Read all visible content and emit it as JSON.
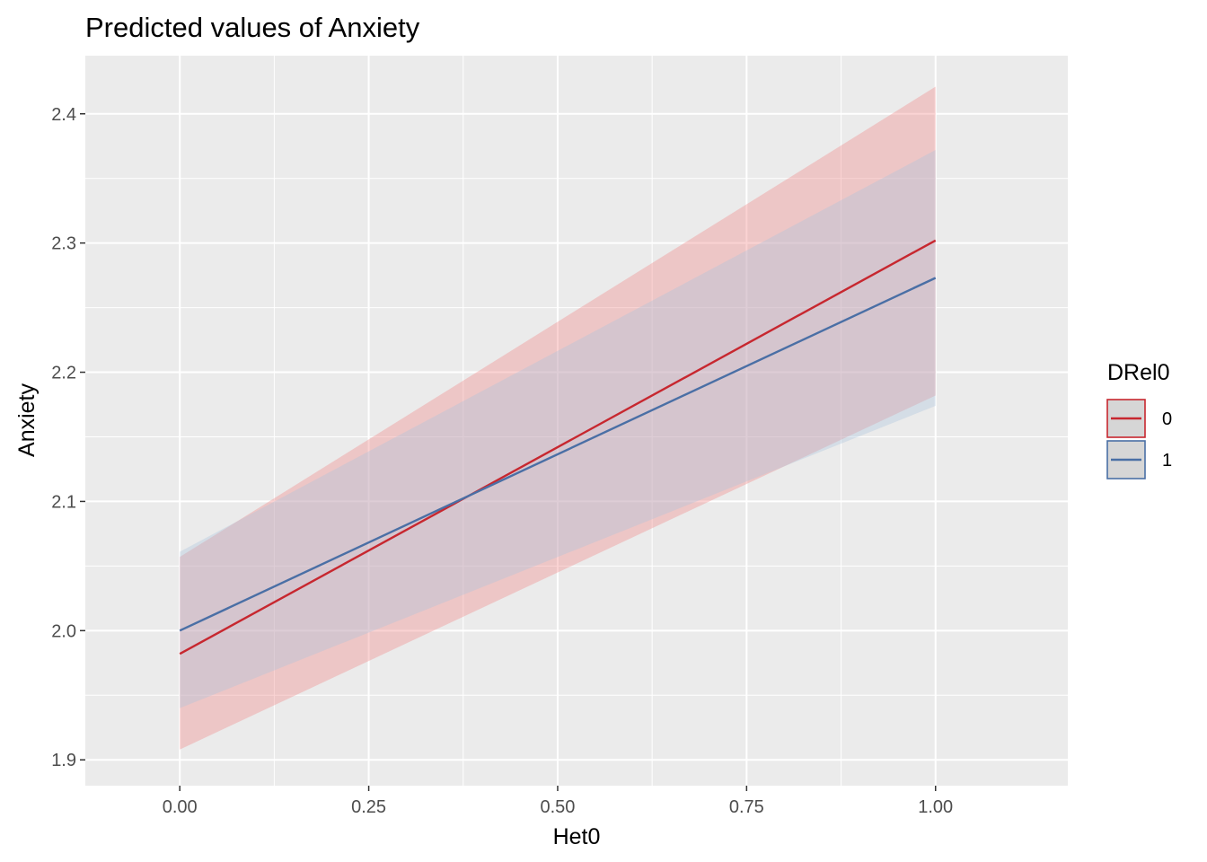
{
  "chart_data": {
    "type": "line",
    "title": "Predicted values of Anxiety",
    "xlabel": "Het0",
    "ylabel": "Anxiety",
    "xlim": [
      -0.125,
      1.175
    ],
    "ylim": [
      1.88,
      2.445
    ],
    "x_ticks": [
      0,
      0.25,
      0.5,
      0.75,
      1
    ],
    "x_tick_labels": [
      "0.00",
      "0.25",
      "0.50",
      "0.75",
      "1.00"
    ],
    "y_ticks": [
      1.9,
      2.0,
      2.1,
      2.2,
      2.3,
      2.4
    ],
    "y_tick_labels": [
      "1.9",
      "2.0",
      "2.1",
      "2.2",
      "2.3",
      "2.4"
    ],
    "grid": true,
    "legend": {
      "title": "DRel0",
      "position": "right"
    },
    "series": [
      {
        "name": "0",
        "color": "#c7272f",
        "ribbon_color": "#f08080",
        "x": [
          0,
          1
        ],
        "y": [
          1.982,
          2.302
        ],
        "lower": [
          1.908,
          2.182
        ],
        "upper": [
          2.057,
          2.421
        ]
      },
      {
        "name": "1",
        "color": "#4a6fa5",
        "ribbon_color": "#a9c4de",
        "x": [
          0,
          1
        ],
        "y": [
          2.0,
          2.273
        ],
        "lower": [
          1.94,
          2.174
        ],
        "upper": [
          2.061,
          2.372
        ]
      }
    ]
  }
}
